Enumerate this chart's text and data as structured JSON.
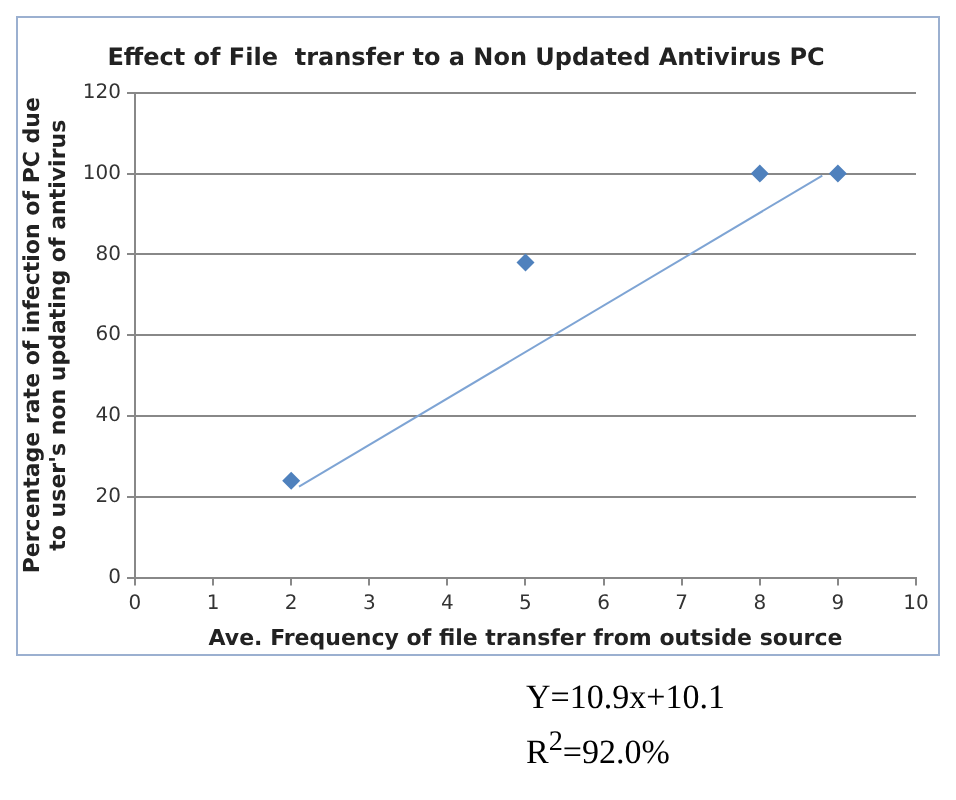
{
  "chart_data": {
    "type": "scatter",
    "title": "Effect of File  transfer to a Non Updated Antivirus PC",
    "xlabel": "Ave. Frequency of file transfer from outside source",
    "ylabel": "Percentage rate of infection of PC due\nto user's non updating of antivirus",
    "x": [
      2,
      5,
      8,
      9
    ],
    "series": [
      {
        "color": "#4f81bd",
        "values": [
          24,
          78,
          100,
          100
        ],
        "marker": "diamond"
      },
      {
        "type": "line",
        "color": "#7ea4d4",
        "x": [
          2.1,
          8.8
        ],
        "values": [
          22.5,
          99.5
        ],
        "marker": "none"
      }
    ],
    "xlim": [
      0,
      10
    ],
    "xticks": [
      0,
      1,
      2,
      3,
      4,
      5,
      6,
      7,
      8,
      9,
      10
    ],
    "ylim": [
      0,
      120
    ],
    "yticks": [
      0,
      20,
      40,
      60,
      80,
      100,
      120
    ],
    "grid": "y",
    "legend": false,
    "annotations": [
      "Y=10.9x+10.1",
      "R$^{2}$=92.0%"
    ]
  }
}
